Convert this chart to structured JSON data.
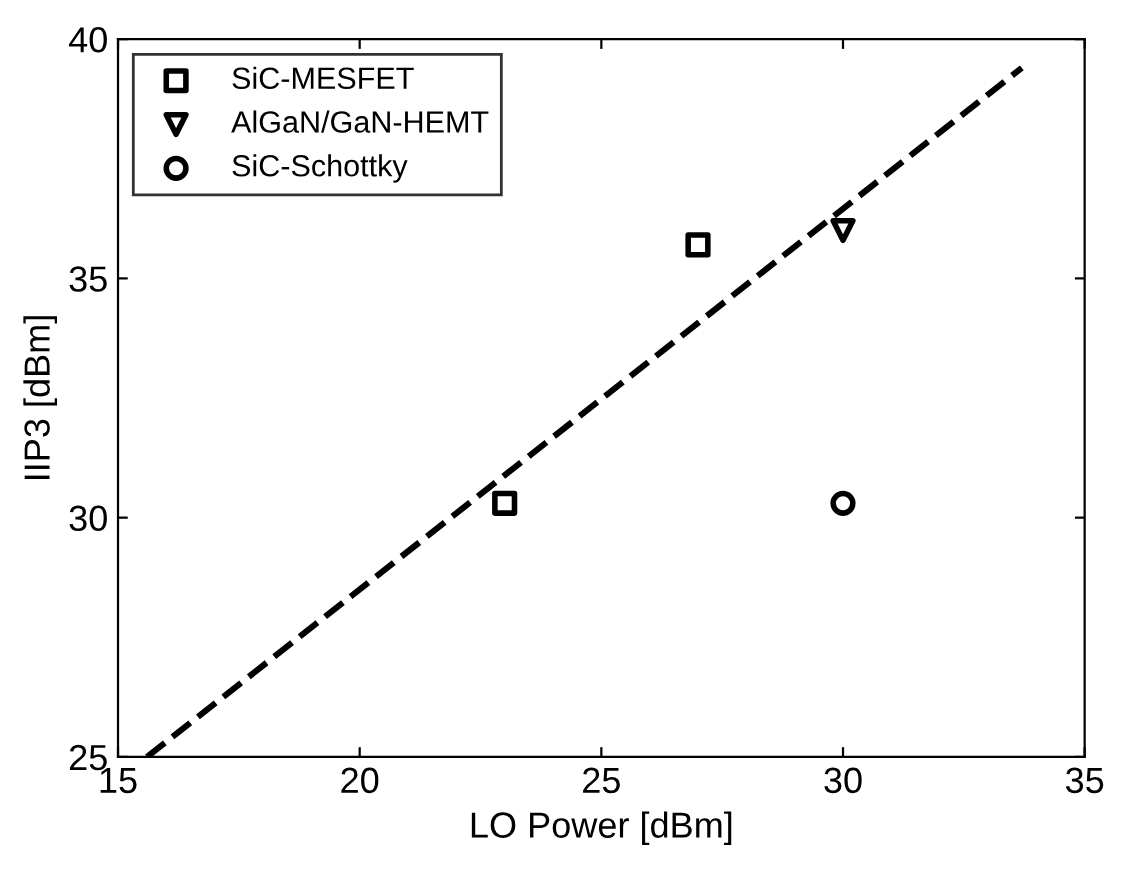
{
  "chart_data": {
    "type": "scatter",
    "xlabel": "LO Power [dBm]",
    "ylabel": "IIP3 [dBm]",
    "xlim": [
      15,
      35
    ],
    "ylim": [
      25,
      40
    ],
    "xticks": [
      15,
      20,
      25,
      30,
      35
    ],
    "yticks": [
      25,
      30,
      35,
      40
    ],
    "grid": false,
    "legend": "top left",
    "series": [
      {
        "name": "SiC-MESFET",
        "color": "#000000",
        "marker": "square",
        "x": [
          23,
          27
        ],
        "values": [
          30.3,
          35.7
        ]
      },
      {
        "name": "AlGaN/GaN-HEMT",
        "color": "#000000",
        "marker": "triangle",
        "x": [
          30
        ],
        "values": [
          36
        ]
      },
      {
        "name": "SiC-Schottky",
        "color": "#000000",
        "marker": "circle",
        "x": [
          30
        ],
        "values": [
          30.3
        ]
      },
      {
        "type": "line",
        "color": "#000000",
        "line_style": "dashed",
        "marker": "none",
        "x": [
          15.6,
          33.7
        ],
        "values": [
          25,
          39.4
        ]
      }
    ]
  }
}
